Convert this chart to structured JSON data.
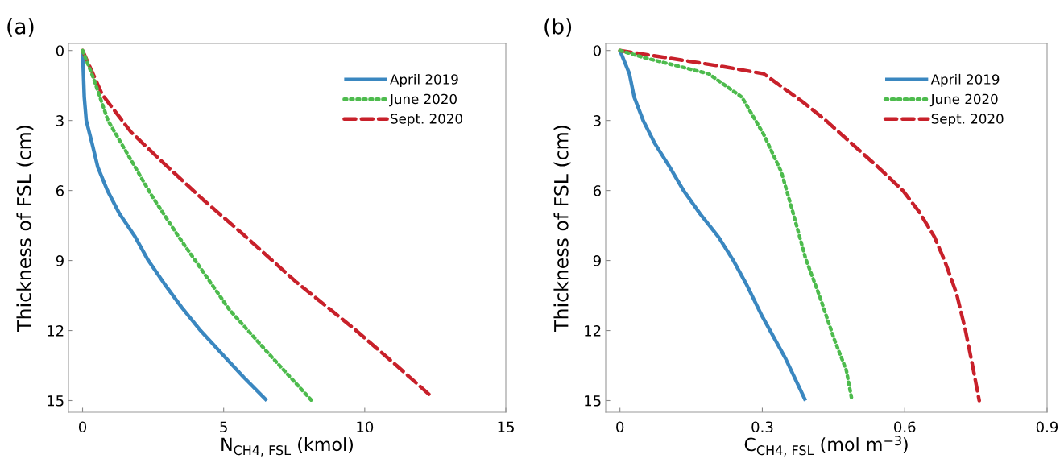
{
  "chart_data": [
    {
      "type": "line",
      "title": "(a)",
      "xlabel": "N$_{CH4, FSL}$ (kmol)",
      "ylabel": "Thickness of FSL (cm)",
      "xlim": [
        -0.5,
        15
      ],
      "xticks": [
        0,
        5,
        10,
        15
      ],
      "ylim": [
        15.5,
        -0.3
      ],
      "yticks": [
        0,
        3,
        6,
        9,
        12,
        15
      ],
      "legend": "top right",
      "grid": false,
      "marker": "none",
      "series": [
        {
          "name": "April 2019",
          "color": "#3a87c0",
          "line_style": "solid",
          "x": [
            0,
            0.06,
            0.13,
            0.34,
            0.54,
            0.88,
            1.31,
            1.87,
            2.33,
            2.9,
            3.51,
            4.18,
            4.94,
            5.71,
            6.53
          ],
          "values": [
            0,
            2,
            3,
            4,
            5,
            6,
            7,
            8,
            9,
            10,
            11,
            12,
            13,
            14,
            15
          ]
        },
        {
          "name": "June 2020",
          "color": "#4dbb4d",
          "line_style": "dotted",
          "x": [
            0,
            0.39,
            0.9,
            1.72,
            2.44,
            3.36,
            4.28,
            5.2,
            6.53,
            8.12
          ],
          "values": [
            0,
            1.2,
            3,
            4.7,
            6.2,
            7.9,
            9.5,
            11.1,
            12.9,
            15
          ]
        },
        {
          "name": "Sept. 2020",
          "color": "#c8202a",
          "line_style": "dashed",
          "x": [
            0,
            0.7,
            1.72,
            2.85,
            4.28,
            5.71,
            7.55,
            9.6,
            11.13,
            12.34
          ],
          "values": [
            0,
            1.9,
            3.5,
            4.8,
            6.4,
            7.9,
            9.9,
            11.9,
            13.5,
            14.8
          ]
        }
      ]
    },
    {
      "type": "line",
      "title": "(b)",
      "xlabel": "C$_{CH4, FSL}$ (mol m$^{−3}$)",
      "ylabel": "Thickness of FSL (cm)",
      "xlim": [
        -0.03,
        0.9
      ],
      "xticks": [
        0,
        0.3,
        0.6,
        0.9
      ],
      "ylim": [
        15.5,
        -0.3
      ],
      "yticks": [
        0,
        3,
        6,
        9,
        12,
        15
      ],
      "legend": "top right",
      "grid": false,
      "marker": "none",
      "series": [
        {
          "name": "April 2019",
          "color": "#3a87c0",
          "line_style": "solid",
          "x": [
            0,
            0.02,
            0.03,
            0.049,
            0.074,
            0.105,
            0.134,
            0.169,
            0.208,
            0.239,
            0.266,
            0.3,
            0.349,
            0.391
          ],
          "values": [
            0,
            1,
            2,
            3,
            4,
            5,
            6,
            7,
            8,
            9,
            10,
            11.4,
            13.2,
            15
          ]
        },
        {
          "name": "June 2020",
          "color": "#4dbb4d",
          "line_style": "dotted",
          "x": [
            0,
            0.05,
            0.187,
            0.257,
            0.303,
            0.34,
            0.364,
            0.391,
            0.422,
            0.452,
            0.477,
            0.489
          ],
          "values": [
            0,
            0.3,
            1,
            2,
            3.6,
            5.2,
            6.9,
            8.9,
            10.6,
            12.4,
            13.7,
            15
          ]
        },
        {
          "name": "Sept. 2020",
          "color": "#c8202a",
          "line_style": "dashed",
          "x": [
            0,
            0.08,
            0.22,
            0.303,
            0.385,
            0.434,
            0.489,
            0.544,
            0.596,
            0.63,
            0.663,
            0.684,
            0.709,
            0.727,
            0.742,
            0.757
          ],
          "values": [
            0,
            0.25,
            0.7,
            1,
            2.2,
            3,
            4,
            5,
            6,
            6.9,
            8,
            9,
            10.4,
            11.9,
            13.4,
            15
          ]
        }
      ]
    }
  ]
}
